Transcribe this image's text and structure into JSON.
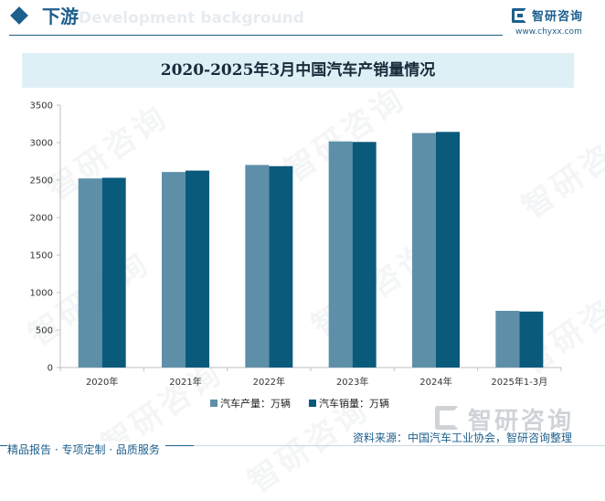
{
  "header": {
    "title": "下游",
    "watermark": "Development background"
  },
  "logo": {
    "name": "智研咨询",
    "url": "www.chyxx.com"
  },
  "watermark_text": "智研咨询",
  "chart_data": {
    "type": "bar",
    "title": "2020-2025年3月中国汽车产销量情况",
    "xlabel": "",
    "ylabel": "",
    "categories": [
      "2020年",
      "2021年",
      "2022年",
      "2023年",
      "2024年",
      "2025年1-3月"
    ],
    "series": [
      {
        "name": "汽车产量：万辆",
        "values": [
          2522,
          2608,
          2702,
          3016,
          3128,
          756
        ],
        "color": "#5e8fa8"
      },
      {
        "name": "汽车销量：万辆",
        "values": [
          2531,
          2627,
          2686,
          3009,
          3143,
          747
        ],
        "color": "#0a5a7c"
      }
    ],
    "ylim": [
      0,
      3500
    ],
    "yticks": [
      0,
      500,
      1000,
      1500,
      2000,
      2500,
      3000,
      3500
    ],
    "grid": false,
    "legend": "bottom-center"
  },
  "footer": {
    "logo_text": "智研咨询",
    "source": "资料来源：中国汽车工业协会，智研咨询整理",
    "slogan": "精品报告 · 专项定制 · 品质服务"
  }
}
